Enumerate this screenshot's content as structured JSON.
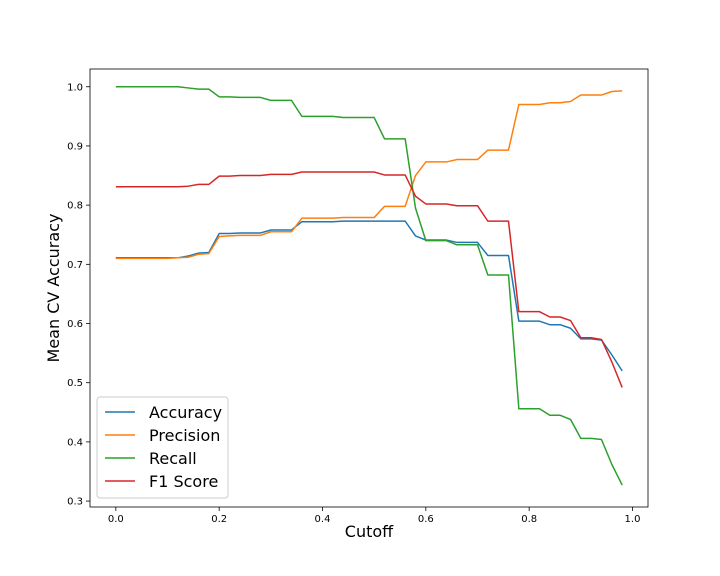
{
  "chart_data": {
    "type": "line",
    "title": "",
    "xlabel": "Cutoff",
    "ylabel": "Mean CV Accuracy",
    "xlim": [
      -0.05,
      1.03
    ],
    "ylim": [
      0.29,
      1.03
    ],
    "xticks": [
      0.0,
      0.2,
      0.4,
      0.6,
      0.8,
      1.0
    ],
    "xtick_labels": [
      "0.0",
      "0.2",
      "0.4",
      "0.6",
      "0.8",
      "1.0"
    ],
    "yticks": [
      0.3,
      0.4,
      0.5,
      0.6,
      0.7,
      0.8,
      0.9,
      1.0
    ],
    "ytick_labels": [
      "0.3",
      "0.4",
      "0.5",
      "0.6",
      "0.7",
      "0.8",
      "0.9",
      "1.0"
    ],
    "grid": false,
    "legend_position": "lower-left",
    "x": [
      0.0,
      0.02,
      0.04,
      0.06,
      0.08,
      0.1,
      0.12,
      0.14,
      0.16,
      0.18,
      0.2,
      0.22,
      0.24,
      0.26,
      0.28,
      0.3,
      0.32,
      0.34,
      0.36,
      0.38,
      0.4,
      0.42,
      0.44,
      0.46,
      0.48,
      0.5,
      0.52,
      0.54,
      0.56,
      0.58,
      0.6,
      0.62,
      0.64,
      0.66,
      0.68,
      0.7,
      0.72,
      0.74,
      0.76,
      0.78,
      0.8,
      0.82,
      0.84,
      0.86,
      0.88,
      0.9,
      0.92,
      0.94,
      0.96,
      0.98
    ],
    "series": [
      {
        "name": "Accuracy",
        "color": "#1f77b4",
        "values": [
          0.711,
          0.711,
          0.711,
          0.711,
          0.711,
          0.711,
          0.711,
          0.714,
          0.719,
          0.72,
          0.752,
          0.752,
          0.753,
          0.753,
          0.753,
          0.758,
          0.758,
          0.758,
          0.772,
          0.772,
          0.772,
          0.772,
          0.773,
          0.773,
          0.773,
          0.773,
          0.773,
          0.773,
          0.773,
          0.748,
          0.741,
          0.741,
          0.741,
          0.737,
          0.737,
          0.737,
          0.715,
          0.715,
          0.715,
          0.604,
          0.604,
          0.604,
          0.598,
          0.598,
          0.592,
          0.574,
          0.574,
          0.572,
          0.547,
          0.52
        ]
      },
      {
        "name": "Precision",
        "color": "#ff7f0e",
        "values": [
          0.71,
          0.71,
          0.71,
          0.71,
          0.71,
          0.71,
          0.711,
          0.712,
          0.717,
          0.718,
          0.747,
          0.748,
          0.749,
          0.749,
          0.749,
          0.755,
          0.755,
          0.755,
          0.778,
          0.778,
          0.778,
          0.778,
          0.779,
          0.779,
          0.779,
          0.779,
          0.798,
          0.798,
          0.798,
          0.85,
          0.873,
          0.873,
          0.873,
          0.877,
          0.877,
          0.877,
          0.893,
          0.893,
          0.893,
          0.97,
          0.97,
          0.97,
          0.973,
          0.973,
          0.975,
          0.986,
          0.986,
          0.986,
          0.992,
          0.993
        ]
      },
      {
        "name": "Recall",
        "color": "#2ca02c",
        "values": [
          1.0,
          1.0,
          1.0,
          1.0,
          1.0,
          1.0,
          1.0,
          0.998,
          0.996,
          0.996,
          0.983,
          0.983,
          0.982,
          0.982,
          0.982,
          0.977,
          0.977,
          0.977,
          0.95,
          0.95,
          0.95,
          0.95,
          0.948,
          0.948,
          0.948,
          0.948,
          0.912,
          0.912,
          0.912,
          0.795,
          0.74,
          0.74,
          0.74,
          0.733,
          0.733,
          0.733,
          0.682,
          0.682,
          0.682,
          0.456,
          0.456,
          0.456,
          0.445,
          0.445,
          0.438,
          0.406,
          0.406,
          0.404,
          0.362,
          0.327
        ]
      },
      {
        "name": "F1 Score",
        "color": "#d62728",
        "values": [
          0.831,
          0.831,
          0.831,
          0.831,
          0.831,
          0.831,
          0.831,
          0.832,
          0.835,
          0.835,
          0.849,
          0.849,
          0.85,
          0.85,
          0.85,
          0.852,
          0.852,
          0.852,
          0.856,
          0.856,
          0.856,
          0.856,
          0.856,
          0.856,
          0.856,
          0.856,
          0.851,
          0.851,
          0.851,
          0.815,
          0.802,
          0.802,
          0.802,
          0.799,
          0.799,
          0.799,
          0.773,
          0.773,
          0.773,
          0.62,
          0.62,
          0.62,
          0.611,
          0.611,
          0.605,
          0.576,
          0.576,
          0.573,
          0.535,
          0.492
        ]
      }
    ]
  }
}
